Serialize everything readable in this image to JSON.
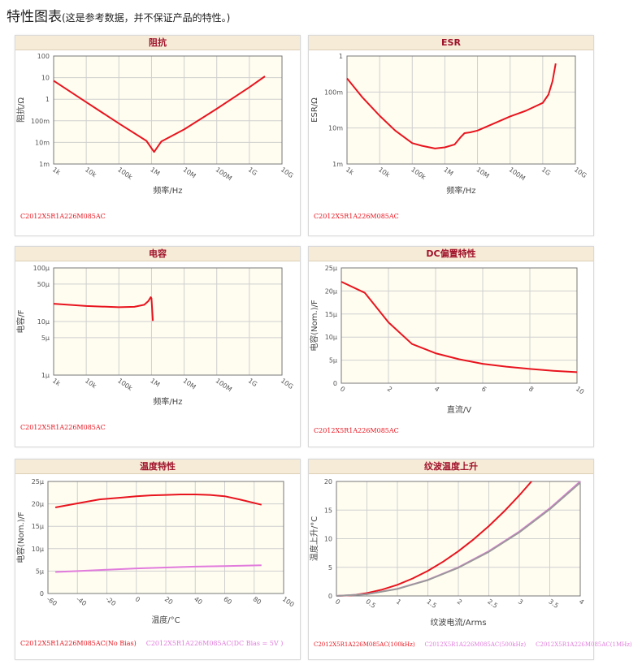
{
  "page": {
    "title": "特性图表",
    "note": "(这是参考数据，并不保证产品的特性。)"
  },
  "chart_data": [
    {
      "id": "impedance",
      "type": "line",
      "title": "阻抗",
      "xlabel": "频率/Hz",
      "ylabel": "阻抗/Ω",
      "xscale": "log",
      "yscale": "log",
      "xlim": [
        1000,
        10000000000
      ],
      "ylim": [
        0.001,
        100
      ],
      "x_ticks": [
        1000,
        10000,
        100000,
        1000000,
        10000000,
        100000000,
        1000000000,
        10000000000
      ],
      "x_tick_labels": [
        "1k",
        "10k",
        "100k",
        "1M",
        "10M",
        "100M",
        "1G",
        "10G"
      ],
      "y_ticks": [
        0.001,
        0.01,
        0.1,
        1,
        10,
        100
      ],
      "y_tick_labels": [
        "1m",
        "10m",
        "100m",
        "1",
        "10",
        "100"
      ],
      "grid": true,
      "series": [
        {
          "name": "C2012X5R1A226M085AC",
          "color": "#e8141e",
          "x": [
            1000,
            10000,
            100000,
            700000,
            1200000,
            2000000,
            10000000,
            100000000,
            1000000000,
            3000000000
          ],
          "y": [
            7.2,
            0.73,
            0.075,
            0.0118,
            0.0036,
            0.011,
            0.04,
            0.36,
            3.6,
            11.5
          ]
        }
      ],
      "legend": "bottom-left"
    },
    {
      "id": "esr",
      "type": "line",
      "title": "ESR",
      "xlabel": "频率/Hz",
      "ylabel": "ESR/Ω",
      "xscale": "log",
      "yscale": "log",
      "xlim": [
        1000,
        10000000000
      ],
      "ylim": [
        0.001,
        1
      ],
      "x_ticks": [
        1000,
        10000,
        100000,
        1000000,
        10000000,
        100000000,
        1000000000,
        10000000000
      ],
      "x_tick_labels": [
        "1k",
        "10k",
        "100k",
        "1M",
        "10M",
        "100M",
        "1G",
        "10G"
      ],
      "y_ticks": [
        0.001,
        0.01,
        0.1,
        1
      ],
      "y_tick_labels": [
        "1m",
        "10m",
        "100m",
        "1"
      ],
      "grid": true,
      "series": [
        {
          "name": "C2012X5R1A226M085AC",
          "color": "#e8141e",
          "x": [
            1000,
            3000,
            10000,
            30000,
            100000,
            200000,
            500000,
            1000000,
            2000000,
            3000000,
            4000000,
            6000000,
            10000000,
            30000000,
            100000000,
            300000000,
            1000000000,
            1500000000,
            2000000000,
            2500000000
          ],
          "y": [
            0.24,
            0.07,
            0.022,
            0.0085,
            0.0038,
            0.0032,
            0.0027,
            0.0029,
            0.0035,
            0.0055,
            0.0072,
            0.0076,
            0.0085,
            0.013,
            0.021,
            0.03,
            0.05,
            0.085,
            0.2,
            0.62
          ]
        }
      ],
      "legend": "bottom-left"
    },
    {
      "id": "capacitance",
      "type": "line",
      "title": "电容",
      "xlabel": "频率/Hz",
      "ylabel": "电容/F",
      "xscale": "log",
      "yscale": "log",
      "xlim": [
        1000,
        10000000000
      ],
      "ylim": [
        1e-06,
        0.0001
      ],
      "x_ticks": [
        1000,
        10000,
        100000,
        1000000,
        10000000,
        100000000,
        1000000000,
        10000000000
      ],
      "x_tick_labels": [
        "1k",
        "10k",
        "100k",
        "1M",
        "10M",
        "100M",
        "1G",
        "10G"
      ],
      "y_ticks": [
        1e-06,
        5e-06,
        1e-05,
        5e-05,
        0.0001
      ],
      "y_tick_labels": [
        "1μ",
        "5μ",
        "10μ",
        "50μ",
        "100μ"
      ],
      "grid": true,
      "series": [
        {
          "name": "C2012X5R1A226M085AC",
          "color": "#e8141e",
          "x": [
            1000,
            10000,
            100000,
            300000,
            600000,
            800000,
            950000,
            1000000,
            1100000
          ],
          "y": [
            2.15e-05,
            1.95e-05,
            1.85e-05,
            1.88e-05,
            2.05e-05,
            2.4e-05,
            2.85e-05,
            2.7e-05,
            1.03e-05
          ]
        }
      ],
      "legend": "bottom-left"
    },
    {
      "id": "dc-bias",
      "type": "line",
      "title": "DC偏置特性",
      "xlabel": "直流/V",
      "ylabel": "电容(Nom.)/F",
      "xlim": [
        0,
        10
      ],
      "ylim": [
        0,
        2.5e-05
      ],
      "x_ticks": [
        0,
        2,
        4,
        6,
        8,
        10
      ],
      "x_tick_labels": [
        "0",
        "2",
        "4",
        "6",
        "8",
        "10"
      ],
      "y_ticks": [
        0,
        5e-06,
        1e-05,
        1.5e-05,
        2e-05,
        2.5e-05
      ],
      "y_tick_labels": [
        "0",
        "5μ",
        "10μ",
        "15μ",
        "20μ",
        "25μ"
      ],
      "grid": true,
      "series": [
        {
          "name": "C2012X5R1A226M085AC",
          "color": "#e8141e",
          "x": [
            0,
            1,
            2,
            3,
            4,
            5,
            6,
            7,
            8,
            9,
            10
          ],
          "y": [
            2.2e-05,
            1.96e-05,
            1.32e-05,
            8.5e-06,
            6.5e-06,
            5.2e-06,
            4.2e-06,
            3.6e-06,
            3.1e-06,
            2.7e-06,
            2.4e-06
          ]
        }
      ],
      "legend": "bottom-left"
    },
    {
      "id": "temperature",
      "type": "line",
      "title": "温度特性",
      "xlabel": "温度/°C",
      "ylabel": "电容(Nom.)/F",
      "xlim": [
        -60,
        100
      ],
      "ylim": [
        0,
        2.5e-05
      ],
      "x_ticks": [
        -60,
        -40,
        -20,
        0,
        20,
        40,
        60,
        80,
        100
      ],
      "x_tick_labels": [
        "-60",
        "-40",
        "-20",
        "0",
        "20",
        "40",
        "60",
        "80",
        "100"
      ],
      "y_ticks": [
        0,
        5e-06,
        1e-05,
        1.5e-05,
        2e-05,
        2.5e-05
      ],
      "y_tick_labels": [
        "0",
        "5μ",
        "10μ",
        "15μ",
        "20μ",
        "25μ"
      ],
      "grid": true,
      "series": [
        {
          "name": "C2012X5R1A226M085AC(No Bias)",
          "color": "#e8141e",
          "x": [
            -55,
            -40,
            -25,
            -10,
            0,
            10,
            20,
            30,
            40,
            50,
            60,
            70,
            85
          ],
          "y": [
            1.92e-05,
            2.01e-05,
            2.1e-05,
            2.14e-05,
            2.17e-05,
            2.19e-05,
            2.2e-05,
            2.21e-05,
            2.21e-05,
            2.2e-05,
            2.17e-05,
            2.1e-05,
            1.98e-05
          ]
        },
        {
          "name": "C2012X5R1A226M085AC(DC Bias = 5V )",
          "color": "#e17bdc",
          "x": [
            -55,
            -40,
            -20,
            0,
            20,
            40,
            60,
            85
          ],
          "y": [
            4.8e-06,
            5e-06,
            5.3e-06,
            5.6e-06,
            5.8e-06,
            6e-06,
            6.1e-06,
            6.3e-06
          ]
        }
      ],
      "legend": "bottom-left"
    },
    {
      "id": "ripple",
      "type": "line",
      "title": "纹波温度上升",
      "xlabel": "纹波电流/Arms",
      "ylabel": "温度上升/°C",
      "xlim": [
        0,
        4
      ],
      "ylim": [
        0,
        20
      ],
      "x_ticks": [
        0,
        0.5,
        1,
        1.5,
        2,
        2.5,
        3,
        3.5,
        4
      ],
      "x_tick_labels": [
        "0",
        "0.5",
        "1",
        "1.5",
        "2",
        "2.5",
        "3",
        "3.5",
        "4"
      ],
      "y_ticks": [
        0,
        5,
        10,
        15,
        20
      ],
      "y_tick_labels": [
        "0",
        "5",
        "10",
        "15",
        "20"
      ],
      "grid": true,
      "series": [
        {
          "name": "C2012X5R1A226M085AC(100kHz)",
          "color": "#e8141e",
          "x": [
            0,
            0.25,
            0.5,
            0.75,
            1,
            1.25,
            1.5,
            1.75,
            2,
            2.25,
            2.5,
            2.75,
            3,
            3.2
          ],
          "y": [
            0,
            0.12,
            0.49,
            1.1,
            1.95,
            3.05,
            4.39,
            5.98,
            7.81,
            9.89,
            12.2,
            14.77,
            17.58,
            20.0
          ]
        },
        {
          "name": "C2012X5R1A226M085AC(500kHz)",
          "color": "#e17bdc",
          "x": [
            0,
            0.5,
            1,
            1.5,
            2,
            2.5,
            3,
            3.5,
            4
          ],
          "y": [
            0,
            0.31,
            1.25,
            2.81,
            5.0,
            7.81,
            11.25,
            15.31,
            20.0
          ]
        },
        {
          "name": "C2012X5R1A226M085AC(1MHz)",
          "color": "#999999",
          "x": [
            0,
            0.5,
            1,
            1.5,
            2,
            2.5,
            3,
            3.5,
            4
          ],
          "y": [
            0,
            0.3,
            1.22,
            2.76,
            4.92,
            7.7,
            11.1,
            15.15,
            19.8
          ]
        }
      ],
      "legend": "bottom-left"
    }
  ]
}
